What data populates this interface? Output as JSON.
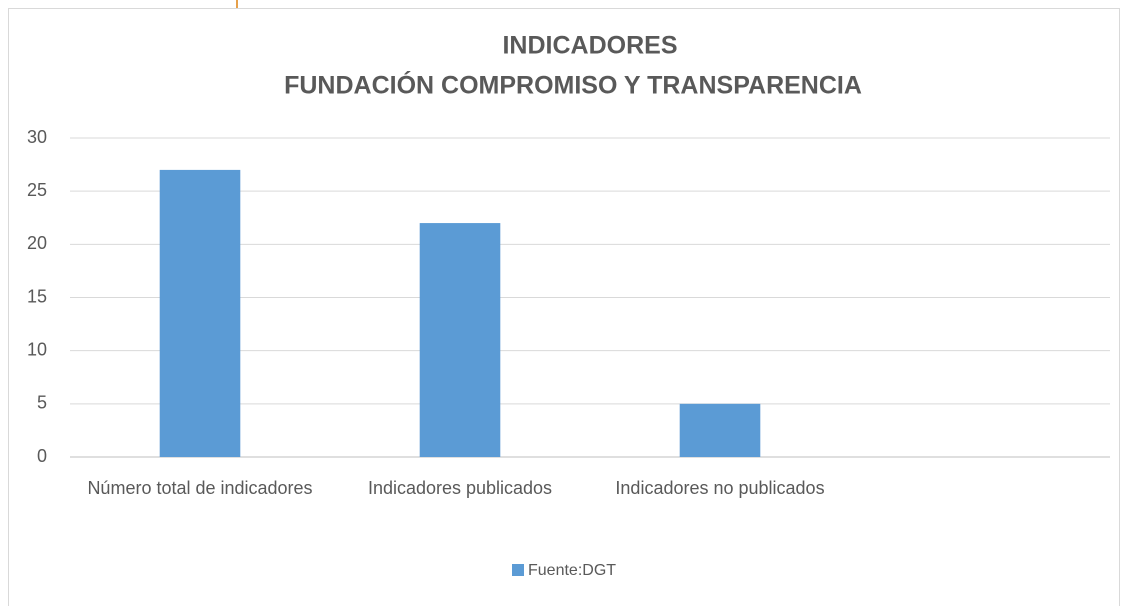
{
  "chart_data": {
    "type": "bar",
    "title": [
      "INDICADORES",
      "FUNDACIÓN COMPROMISO Y TRANSPARENCIA"
    ],
    "categories": [
      "Número total de indicadores",
      "Indicadores publicados",
      "Indicadores no publicados",
      null
    ],
    "series": [
      {
        "name": "Fuente:DGT",
        "color": "#5b9bd5",
        "values": [
          27,
          22,
          5,
          null
        ]
      }
    ],
    "ylim": [
      0,
      30
    ],
    "yticks": [
      0,
      5,
      10,
      15,
      20,
      25,
      30
    ],
    "grid": true,
    "legend": "bottom"
  }
}
